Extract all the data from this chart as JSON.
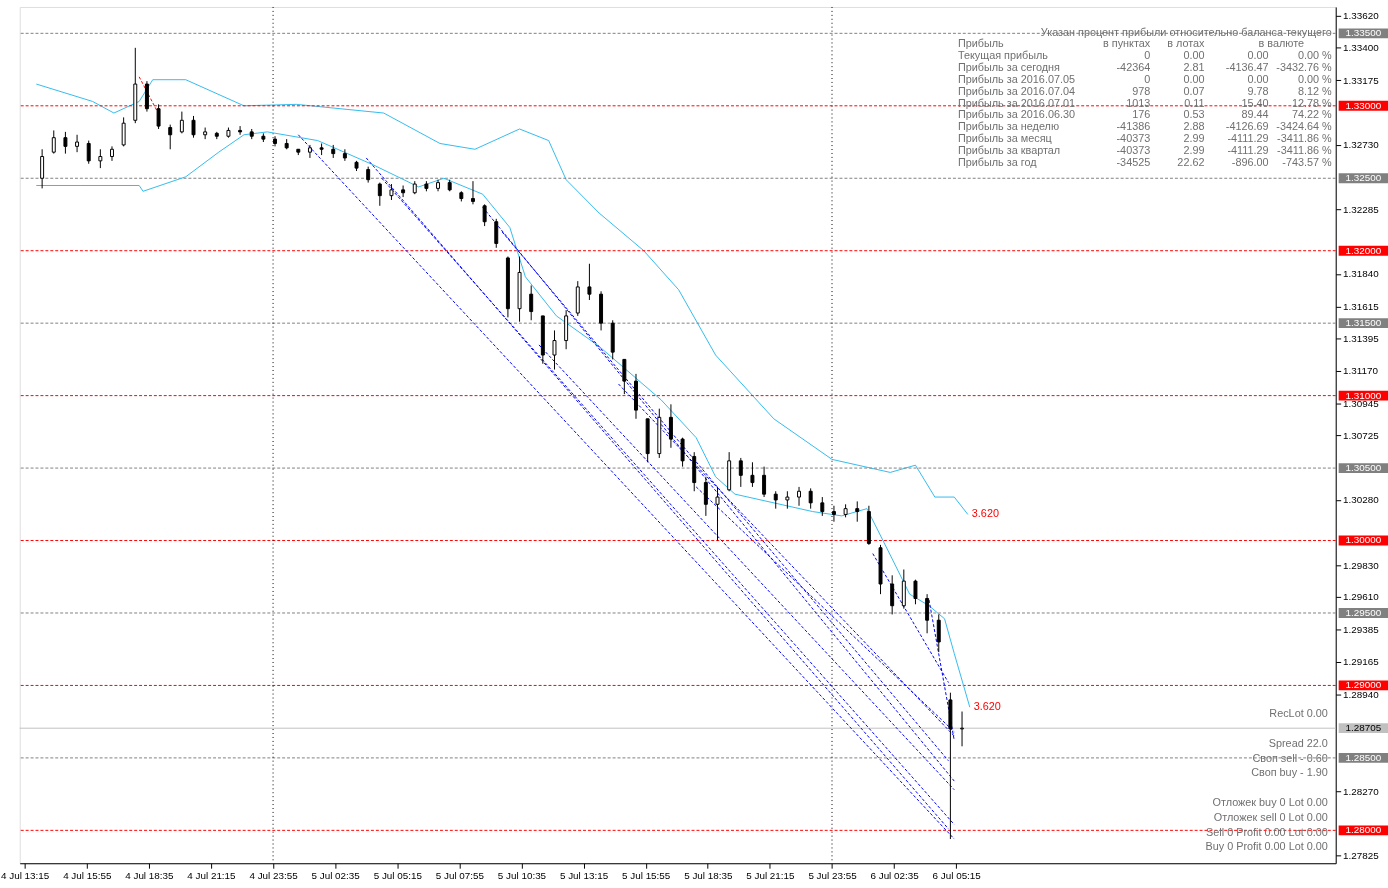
{
  "chart_data": {
    "type": "candlestick",
    "x": [
      "2016-07-04T14:00",
      "2016-07-04T14:30",
      "2016-07-04T15:00",
      "2016-07-04T15:30",
      "2016-07-04T16:00",
      "2016-07-04T16:30",
      "2016-07-04T17:00",
      "2016-07-04T17:30",
      "2016-07-04T18:00",
      "2016-07-04T18:30",
      "2016-07-04T19:00",
      "2016-07-04T19:30",
      "2016-07-04T20:00",
      "2016-07-04T20:30",
      "2016-07-04T21:00",
      "2016-07-04T21:30",
      "2016-07-04T22:00",
      "2016-07-04T22:30",
      "2016-07-04T23:00",
      "2016-07-04T23:30",
      "2016-07-05T00:00",
      "2016-07-05T00:30",
      "2016-07-05T01:00",
      "2016-07-05T01:30",
      "2016-07-05T02:00",
      "2016-07-05T02:30",
      "2016-07-05T03:00",
      "2016-07-05T03:30",
      "2016-07-05T04:00",
      "2016-07-05T04:30",
      "2016-07-05T05:00",
      "2016-07-05T05:30",
      "2016-07-05T06:00",
      "2016-07-05T06:30",
      "2016-07-05T07:00",
      "2016-07-05T07:30",
      "2016-07-05T08:00",
      "2016-07-05T08:30",
      "2016-07-05T09:00",
      "2016-07-05T09:30",
      "2016-07-05T10:00",
      "2016-07-05T10:30",
      "2016-07-05T11:00",
      "2016-07-05T11:30",
      "2016-07-05T12:00",
      "2016-07-05T12:30",
      "2016-07-05T13:00",
      "2016-07-05T13:30",
      "2016-07-05T14:00",
      "2016-07-05T14:30",
      "2016-07-05T15:00",
      "2016-07-05T15:30",
      "2016-07-05T16:00",
      "2016-07-05T16:30",
      "2016-07-05T17:00",
      "2016-07-05T17:30",
      "2016-07-05T18:00",
      "2016-07-05T18:30",
      "2016-07-05T19:00",
      "2016-07-05T19:30",
      "2016-07-05T20:00",
      "2016-07-05T20:30",
      "2016-07-05T21:00",
      "2016-07-05T21:30",
      "2016-07-05T22:00",
      "2016-07-05T22:30",
      "2016-07-05T23:00",
      "2016-07-05T23:30",
      "2016-07-06T00:00",
      "2016-07-06T00:30",
      "2016-07-06T01:00",
      "2016-07-06T01:30",
      "2016-07-06T02:00",
      "2016-07-06T02:30",
      "2016-07-06T03:00",
      "2016-07-06T03:30",
      "2016-07-06T04:00",
      "2016-07-06T04:30",
      "2016-07-06T05:00",
      "2016-07-06T05:30"
    ],
    "ohlc": [
      [
        1.325,
        1.327,
        1.3243,
        1.3265
      ],
      [
        1.3268,
        1.3283,
        1.3267,
        1.3278
      ],
      [
        1.3278,
        1.3282,
        1.3267,
        1.3272
      ],
      [
        1.3272,
        1.328,
        1.3268,
        1.3275
      ],
      [
        1.3274,
        1.3276,
        1.326,
        1.3262
      ],
      [
        1.3262,
        1.327,
        1.3257,
        1.3265
      ],
      [
        1.3265,
        1.3272,
        1.3262,
        1.327
      ],
      [
        1.3273,
        1.3292,
        1.3272,
        1.3288
      ],
      [
        1.329,
        1.334,
        1.3288,
        1.3315
      ],
      [
        1.3315,
        1.3317,
        1.3296,
        1.3298
      ],
      [
        1.3298,
        1.3301,
        1.3284,
        1.3286
      ],
      [
        1.3285,
        1.3287,
        1.327,
        1.328
      ],
      [
        1.3282,
        1.3296,
        1.3281,
        1.329
      ],
      [
        1.329,
        1.3293,
        1.3278,
        1.328
      ],
      [
        1.328,
        1.3285,
        1.3277,
        1.3282
      ],
      [
        1.3281,
        1.3282,
        1.3277,
        1.3279
      ],
      [
        1.3279,
        1.3285,
        1.3278,
        1.3283
      ],
      [
        1.3283,
        1.3286,
        1.328,
        1.3282
      ],
      [
        1.3282,
        1.3284,
        1.3277,
        1.3279
      ],
      [
        1.3279,
        1.3281,
        1.3275,
        1.3277
      ],
      [
        1.3277,
        1.3279,
        1.3272,
        1.3274
      ],
      [
        1.3274,
        1.3277,
        1.327,
        1.3271
      ],
      [
        1.327,
        1.327,
        1.3266,
        1.3268
      ],
      [
        1.3268,
        1.3273,
        1.3264,
        1.3271
      ],
      [
        1.3271,
        1.3274,
        1.3266,
        1.327
      ],
      [
        1.327,
        1.3273,
        1.3264,
        1.3267
      ],
      [
        1.3267,
        1.327,
        1.3262,
        1.3264
      ],
      [
        1.3261,
        1.3262,
        1.3255,
        1.3257
      ],
      [
        1.3256,
        1.3258,
        1.3247,
        1.3249
      ],
      [
        1.3246,
        1.3247,
        1.3231,
        1.3238
      ],
      [
        1.3238,
        1.3246,
        1.3235,
        1.3242
      ],
      [
        1.3242,
        1.3245,
        1.3237,
        1.324
      ],
      [
        1.324,
        1.3248,
        1.3239,
        1.3246
      ],
      [
        1.3246,
        1.3248,
        1.3241,
        1.3243
      ],
      [
        1.3243,
        1.3249,
        1.3241,
        1.3247
      ],
      [
        1.3247,
        1.3249,
        1.3241,
        1.3242
      ],
      [
        1.324,
        1.3241,
        1.3234,
        1.3236
      ],
      [
        1.3236,
        1.3248,
        1.3232,
        1.3234
      ],
      [
        1.3231,
        1.3232,
        1.3217,
        1.322
      ],
      [
        1.322,
        1.3222,
        1.3202,
        1.3205
      ],
      [
        1.3195,
        1.3196,
        1.3154,
        1.316
      ],
      [
        1.316,
        1.3196,
        1.3151,
        1.3185
      ],
      [
        1.317,
        1.3176,
        1.3152,
        1.3158
      ],
      [
        1.3155,
        1.3155,
        1.3122,
        1.3128
      ],
      [
        1.3128,
        1.3145,
        1.3118,
        1.3138
      ],
      [
        1.3138,
        1.3159,
        1.3132,
        1.3155
      ],
      [
        1.3157,
        1.3179,
        1.3155,
        1.3175
      ],
      [
        1.3175,
        1.3191,
        1.3166,
        1.317
      ],
      [
        1.317,
        1.3172,
        1.3145,
        1.315
      ],
      [
        1.315,
        1.3152,
        1.3125,
        1.313
      ],
      [
        1.3125,
        1.3125,
        1.3101,
        1.311
      ],
      [
        1.311,
        1.3115,
        1.3084,
        1.309
      ],
      [
        1.3084,
        1.3084,
        1.3054,
        1.306
      ],
      [
        1.306,
        1.3091,
        1.3057,
        1.3085
      ],
      [
        1.3085,
        1.3094,
        1.3064,
        1.307
      ],
      [
        1.307,
        1.3071,
        1.3051,
        1.3055
      ],
      [
        1.3058,
        1.3061,
        1.3034,
        1.304
      ],
      [
        1.304,
        1.3044,
        1.3017,
        1.3025
      ],
      [
        1.3025,
        1.3037,
        1.3,
        1.303
      ],
      [
        1.3035,
        1.3061,
        1.3034,
        1.3055
      ],
      [
        1.3055,
        1.3057,
        1.3037,
        1.3045
      ],
      [
        1.3045,
        1.3054,
        1.3037,
        1.304
      ],
      [
        1.3045,
        1.3051,
        1.303,
        1.3032
      ],
      [
        1.3032,
        1.3034,
        1.3022,
        1.3028
      ],
      [
        1.3028,
        1.3034,
        1.3022,
        1.303
      ],
      [
        1.303,
        1.3037,
        1.3024,
        1.3034
      ],
      [
        1.3034,
        1.3036,
        1.3022,
        1.3026
      ],
      [
        1.3026,
        1.303,
        1.3017,
        1.302
      ],
      [
        1.302,
        1.3024,
        1.3013,
        1.3018
      ],
      [
        1.3018,
        1.3025,
        1.3016,
        1.3022
      ],
      [
        1.3022,
        1.3027,
        1.3013,
        1.302
      ],
      [
        1.302,
        1.3024,
        1.2997,
        1.2998
      ],
      [
        1.2995,
        1.2997,
        1.2963,
        1.297
      ],
      [
        1.297,
        1.2976,
        1.2949,
        1.2955
      ],
      [
        1.2955,
        1.298,
        1.2953,
        1.2972
      ],
      [
        1.2972,
        1.2973,
        1.2956,
        1.296
      ],
      [
        1.296,
        1.2963,
        1.2936,
        1.2945
      ],
      [
        1.2945,
        1.2949,
        1.2923,
        1.293
      ],
      [
        1.289,
        1.2895,
        1.2794,
        1.287
      ],
      [
        1.287,
        1.2882,
        1.2858,
        1.28705
      ]
    ],
    "series": [
      {
        "type": "line",
        "color": "#33bbee",
        "line_style": "solid",
        "x": [
          "2016-07-04T13:45",
          "2016-07-04T16:10",
          "2016-07-04T17:05",
          "2016-07-04T18:10",
          "2016-07-04T18:45",
          "2016-07-04T20:10",
          "2016-07-04T22:40",
          "2016-07-05T00:55",
          "2016-07-05T04:40",
          "2016-07-05T07:05",
          "2016-07-05T08:35",
          "2016-07-05T10:30",
          "2016-07-05T11:45",
          "2016-07-05T12:30",
          "2016-07-05T13:55",
          "2016-07-05T15:50",
          "2016-07-05T17:20",
          "2016-07-05T18:55",
          "2016-07-05T21:25",
          "2016-07-05T23:55",
          "2016-07-06T02:25",
          "2016-07-06T03:30",
          "2016-07-06T04:20",
          "2016-07-06T05:10",
          "2016-07-06T05:45"
        ],
        "values": [
          1.3315,
          1.3303,
          1.3295,
          1.3303,
          1.3318,
          1.3318,
          1.33,
          1.3301,
          1.3295,
          1.3274,
          1.327,
          1.3284,
          1.3276,
          1.3249,
          1.3226,
          1.32,
          1.3173,
          1.3128,
          1.3084,
          1.3056,
          1.3047,
          1.3052,
          1.303,
          1.303,
          1.3018
        ]
      },
      {
        "type": "line",
        "color": "#33bbee",
        "line_style": "solid",
        "x": [
          "2016-07-04T13:45",
          "2016-07-04T15:40",
          "2016-07-04T18:10",
          "2016-07-04T18:20",
          "2016-07-04T20:10",
          "2016-07-04T21:35",
          "2016-07-04T22:40",
          "2016-07-04T23:40",
          "2016-07-05T01:50",
          "2016-07-05T04:15",
          "2016-07-05T06:10",
          "2016-07-05T07:15",
          "2016-07-05T08:55",
          "2016-07-05T10:05",
          "2016-07-05T10:45",
          "2016-07-05T12:05",
          "2016-07-05T13:55",
          "2016-07-05T16:35",
          "2016-07-05T18:05",
          "2016-07-05T18:55",
          "2016-07-05T19:45",
          "2016-07-05T23:05",
          "2016-07-06T00:20",
          "2016-07-06T01:25",
          "2016-07-06T02:25",
          "2016-07-06T03:15",
          "2016-07-06T04:05",
          "2016-07-06T04:45",
          "2016-07-06T05:10",
          "2016-07-06T05:50"
        ],
        "values": [
          1.3245,
          1.3245,
          1.3245,
          1.3241,
          1.3251,
          1.3268,
          1.328,
          1.3282,
          1.3276,
          1.3259,
          1.3244,
          1.325,
          1.3239,
          1.3216,
          1.3182,
          1.3155,
          1.3134,
          1.3097,
          1.3071,
          1.3044,
          1.3032,
          1.302,
          1.3017,
          1.3022,
          1.299,
          1.2963,
          1.2955,
          1.2946,
          1.2922,
          1.2885
        ]
      },
      {
        "type": "line",
        "color": "#ff0000",
        "line_style": "dashed",
        "x": [
          "2016-07-04T18:10",
          "2016-07-04T18:55"
        ],
        "values": [
          1.332,
          1.3297
        ]
      },
      {
        "type": "line",
        "color": "#0000ff",
        "line_style": "dashed",
        "x": [
          "2016-07-05T01:00",
          "2016-07-06T05:10"
        ],
        "values": [
          1.328,
          1.2794
        ]
      },
      {
        "type": "line",
        "color": "#0000ff",
        "line_style": "dashed",
        "x": [
          "2016-07-05T03:55",
          "2016-07-06T04:55"
        ],
        "values": [
          1.3264,
          1.2801
        ]
      },
      {
        "type": "line",
        "color": "#0000ff",
        "line_style": "dashed",
        "x": [
          "2016-07-05T04:35",
          "2016-07-06T05:10"
        ],
        "values": [
          1.325,
          1.2804
        ]
      },
      {
        "type": "line",
        "color": "#0000ff",
        "line_style": "dashed",
        "x": [
          "2016-07-05T08:55",
          "2016-07-06T05:10"
        ],
        "values": [
          1.323,
          1.2834
        ]
      },
      {
        "type": "line",
        "color": "#0000ff",
        "line_style": "dashed",
        "x": [
          "2016-07-05T09:45",
          "2016-07-06T04:55"
        ],
        "values": [
          1.3213,
          1.2848
        ]
      },
      {
        "type": "line",
        "color": "#0000ff",
        "line_style": "dashed",
        "x": [
          "2016-07-05T11:20",
          "2016-07-06T05:10"
        ],
        "values": [
          1.3135,
          1.2828
        ]
      },
      {
        "type": "line",
        "color": "#0000ff",
        "line_style": "dashed",
        "x": [
          "2016-07-05T14:45",
          "2016-07-06T05:10"
        ],
        "values": [
          1.3108,
          1.2865
        ]
      },
      {
        "type": "line",
        "color": "#0000ff",
        "line_style": "dashed",
        "x": [
          "2016-07-05T18:05",
          "2016-07-06T05:10"
        ],
        "values": [
          1.3037,
          1.2868
        ]
      },
      {
        "type": "line",
        "color": "#0000ff",
        "line_style": "dashed",
        "x": [
          "2016-07-06T01:40",
          "2016-07-06T04:55"
        ],
        "values": [
          1.2991,
          1.2902
        ]
      },
      {
        "type": "line",
        "color": "#0000ff",
        "line_style": "dashed",
        "x": [
          "2016-07-06T04:05",
          "2016-07-06T05:10"
        ],
        "values": [
          1.2959,
          1.2862
        ]
      }
    ],
    "xlim": [
      "2016-07-04T13:15",
      "2016-07-06T21:20"
    ],
    "xticks": [
      {
        "value": "2016-07-04T13:15",
        "label": "4 Jul 13:15"
      },
      {
        "value": "2016-07-04T15:55",
        "label": "4 Jul 15:55"
      },
      {
        "value": "2016-07-04T18:35",
        "label": "4 Jul 18:35"
      },
      {
        "value": "2016-07-04T21:15",
        "label": "4 Jul 21:15"
      },
      {
        "value": "2016-07-04T23:55",
        "label": "4 Jul 23:55"
      },
      {
        "value": "2016-07-05T02:35",
        "label": "5 Jul 02:35"
      },
      {
        "value": "2016-07-05T05:15",
        "label": "5 Jul 05:15"
      },
      {
        "value": "2016-07-05T07:55",
        "label": "5 Jul 07:55"
      },
      {
        "value": "2016-07-05T10:35",
        "label": "5 Jul 10:35"
      },
      {
        "value": "2016-07-05T13:15",
        "label": "5 Jul 13:15"
      },
      {
        "value": "2016-07-05T15:55",
        "label": "5 Jul 15:55"
      },
      {
        "value": "2016-07-05T18:35",
        "label": "5 Jul 18:35"
      },
      {
        "value": "2016-07-05T21:15",
        "label": "5 Jul 21:15"
      },
      {
        "value": "2016-07-05T23:55",
        "label": "5 Jul 23:55"
      },
      {
        "value": "2016-07-06T02:35",
        "label": "6 Jul 02:35"
      },
      {
        "value": "2016-07-06T05:15",
        "label": "6 Jul 05:15"
      }
    ],
    "ylim": [
      1.27773,
      1.33682
    ],
    "yticks": [
      {
        "value": 1.3362,
        "label": "1.33620"
      },
      {
        "value": 1.334,
        "label": "1.33400"
      },
      {
        "value": 1.33175,
        "label": "1.33175"
      },
      {
        "value": 1.3273,
        "label": "1.32730"
      },
      {
        "value": 1.32285,
        "label": "1.32285"
      },
      {
        "value": 1.3184,
        "label": "1.31840"
      },
      {
        "value": 1.31615,
        "label": "1.31615"
      },
      {
        "value": 1.31395,
        "label": "1.31395"
      },
      {
        "value": 1.3117,
        "label": "1.31170"
      },
      {
        "value": 1.30945,
        "label": "1.30945"
      },
      {
        "value": 1.30725,
        "label": "1.30725"
      },
      {
        "value": 1.3028,
        "label": "1.30280"
      },
      {
        "value": 1.2983,
        "label": "1.29830"
      },
      {
        "value": 1.2961,
        "label": "1.29610"
      },
      {
        "value": 1.29385,
        "label": "1.29385"
      },
      {
        "value": 1.29165,
        "label": "1.29165"
      },
      {
        "value": 1.2894,
        "label": "1.28940"
      },
      {
        "value": 1.2827,
        "label": "1.28270"
      },
      {
        "value": 1.27825,
        "label": "1.27825"
      }
    ],
    "ref_lines": [
      {
        "axis": "y",
        "value": 1.335,
        "label": "1.33500",
        "color": "#808080",
        "line_style": "dashed"
      },
      {
        "axis": "y",
        "value": 1.33,
        "label": "1.33000",
        "color": "#ff0000",
        "line_style": "dashed"
      },
      {
        "axis": "y",
        "value": 1.325,
        "label": "1.32500",
        "color": "#808080",
        "line_style": "dashed"
      },
      {
        "axis": "y",
        "value": 1.32,
        "label": "1.32000",
        "color": "#ff0000",
        "line_style": "dashed"
      },
      {
        "axis": "y",
        "value": 1.315,
        "label": "1.31500",
        "color": "#808080",
        "line_style": "dashed"
      },
      {
        "axis": "y",
        "value": 1.31,
        "label": "1.31000",
        "color": "#ff0000",
        "line_style": "dashed"
      },
      {
        "axis": "y",
        "value": 1.305,
        "label": "1.30500",
        "color": "#808080",
        "line_style": "dashed"
      },
      {
        "axis": "y",
        "value": 1.3,
        "label": "1.30000",
        "color": "#ff0000",
        "line_style": "dashed"
      },
      {
        "axis": "y",
        "value": 1.295,
        "label": "1.29500",
        "color": "#808080",
        "line_style": "dashed"
      },
      {
        "axis": "y",
        "value": 1.29,
        "label": "1.29000",
        "color": "#ff0000",
        "line_style": "dashed"
      },
      {
        "axis": "y",
        "value": 1.285,
        "label": "1.28500",
        "color": "#808080",
        "line_style": "dashed"
      },
      {
        "axis": "y",
        "value": 1.28,
        "label": "1.28000",
        "color": "#ff0000",
        "line_style": "dashed"
      },
      {
        "axis": "y",
        "value": 1.28705,
        "label": "1.28705",
        "color": "#c0c0c0",
        "line_style": "solid"
      },
      {
        "axis": "x",
        "value": "2016-07-04T23:55",
        "color": "#000000",
        "line_style": "dotted"
      },
      {
        "axis": "x",
        "value": "2016-07-05T23:55",
        "color": "#000000",
        "line_style": "dotted"
      }
    ],
    "annotations": [
      "Указан процент прибыли относительно баланса текущего",
      "Прибыль\tв пунктах\tв лотах\tв валюте",
      "Текущая прибыль\t0\t0.00\t0.00\t0.00 %",
      "Прибыль за сегодня\t-42364\t2.81\t-4136.47\t-3432.76 %",
      "Прибыль за 2016.07.05\t0\t0.00\t0.00\t0.00 %",
      "Прибыль за 2016.07.04\t978\t0.07\t9.78\t8.12 %",
      "Прибыль за 2016.07.01\t1013\t0.11\t15.40\t12.78 %",
      "Прибыль за 2016.06.30\t176\t0.53\t89.44\t74.22 %",
      "Прибыль за неделю\t-41386\t2.88\t-4126.69\t-3424.64 %",
      "Прибыль за месяц\t-40373\t2.99\t-4111.29\t-3411.86 %",
      "Прибыль за квартал\t-40373\t2.99\t-4111.29\t-3411.86 %",
      "Прибыль за год\t-34525\t22.62\t-896.00\t-743.57 %",
      "RecLot 0.00",
      "Spread 22.0",
      "Своп sell - 0.60",
      "Своп buy - 1.90",
      "Отложек buy 0 Lot 0.00",
      "Отложек sell 0 Lot 0.00",
      "Sell 0 Profit 0.00 Lot 0.00",
      "Buy 0 Profit 0.00 Lot 0.00",
      {
        "text": "3.620",
        "x": "2016-07-06T05:45",
        "y": 1.3018
      },
      {
        "text": "3.620",
        "x": "2016-07-06T05:50",
        "y": 1.2885
      }
    ]
  }
}
